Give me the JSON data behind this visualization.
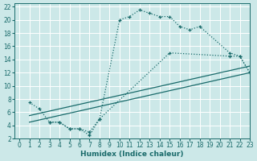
{
  "xlabel": "Humidex (Indice chaleur)",
  "background_color": "#cce8e8",
  "grid_color": "#ffffff",
  "line_color": "#1a6b6b",
  "xlim": [
    -0.5,
    23
  ],
  "ylim": [
    2,
    22.5
  ],
  "xticks": [
    0,
    1,
    2,
    3,
    4,
    5,
    6,
    7,
    8,
    9,
    10,
    11,
    12,
    13,
    14,
    15,
    16,
    17,
    18,
    19,
    20,
    21,
    22,
    23
  ],
  "yticks": [
    2,
    4,
    6,
    8,
    10,
    12,
    14,
    16,
    18,
    20,
    22
  ],
  "curve1_x": [
    1,
    2,
    3,
    4,
    5,
    6,
    7,
    8,
    10,
    11,
    12,
    13,
    14,
    15,
    16,
    17,
    18,
    21,
    22,
    23
  ],
  "curve1_y": [
    7.5,
    6.5,
    4.5,
    4.5,
    3.5,
    3.5,
    3.0,
    5.0,
    20.0,
    20.5,
    21.5,
    21.0,
    20.5,
    20.5,
    19.0,
    18.5,
    19.0,
    15.0,
    14.5,
    12.0
  ],
  "line1_x": [
    1,
    23
  ],
  "line1_y": [
    5.5,
    13.0
  ],
  "line2_x": [
    1,
    23
  ],
  "line2_y": [
    4.5,
    12.0
  ],
  "curve2_x": [
    3,
    4,
    5,
    6,
    7,
    8,
    15,
    21,
    22,
    23
  ],
  "curve2_y": [
    4.5,
    4.5,
    3.5,
    3.5,
    2.5,
    5.0,
    15.0,
    14.5,
    14.5,
    12.0
  ]
}
